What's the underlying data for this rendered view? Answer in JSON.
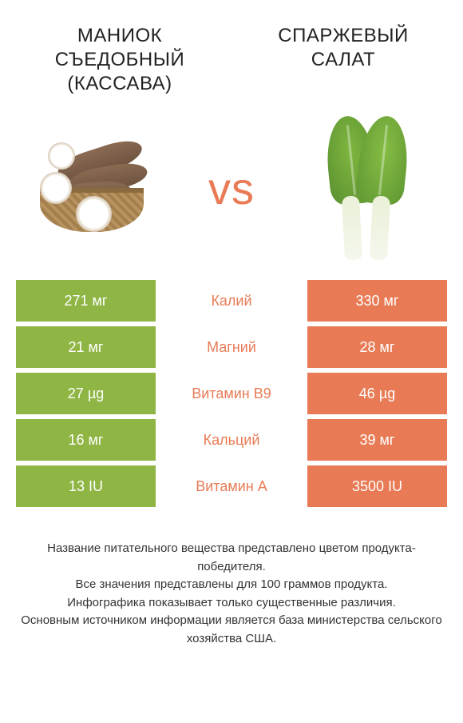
{
  "colors": {
    "green": "#8fb544",
    "orange": "#e87b55",
    "text": "#333333",
    "bg": "#ffffff"
  },
  "header": {
    "left_title": "МАНИОК СЪЕДОБНЫЙ (КАССАВА)",
    "right_title": "СПАРЖЕВЫЙ САЛАТ"
  },
  "vs_label": "vs",
  "rows": [
    {
      "nutrient": "Калий",
      "left": "271 мг",
      "right": "330 мг",
      "winner": "right"
    },
    {
      "nutrient": "Магний",
      "left": "21 мг",
      "right": "28 мг",
      "winner": "right"
    },
    {
      "nutrient": "Витамин B9",
      "left": "27 µg",
      "right": "46 µg",
      "winner": "right"
    },
    {
      "nutrient": "Кальций",
      "left": "16 мг",
      "right": "39 мг",
      "winner": "right"
    },
    {
      "nutrient": "Витамин A",
      "left": "13 IU",
      "right": "3500 IU",
      "winner": "right"
    }
  ],
  "footer": {
    "line1": "Название питательного вещества представлено цветом продукта-победителя.",
    "line2": "Все значения представлены для 100 граммов продукта.",
    "line3": "Инфографика показывает только существенные различия.",
    "line4": "Основным источником информации является база министерства сельского хозяйства США."
  }
}
